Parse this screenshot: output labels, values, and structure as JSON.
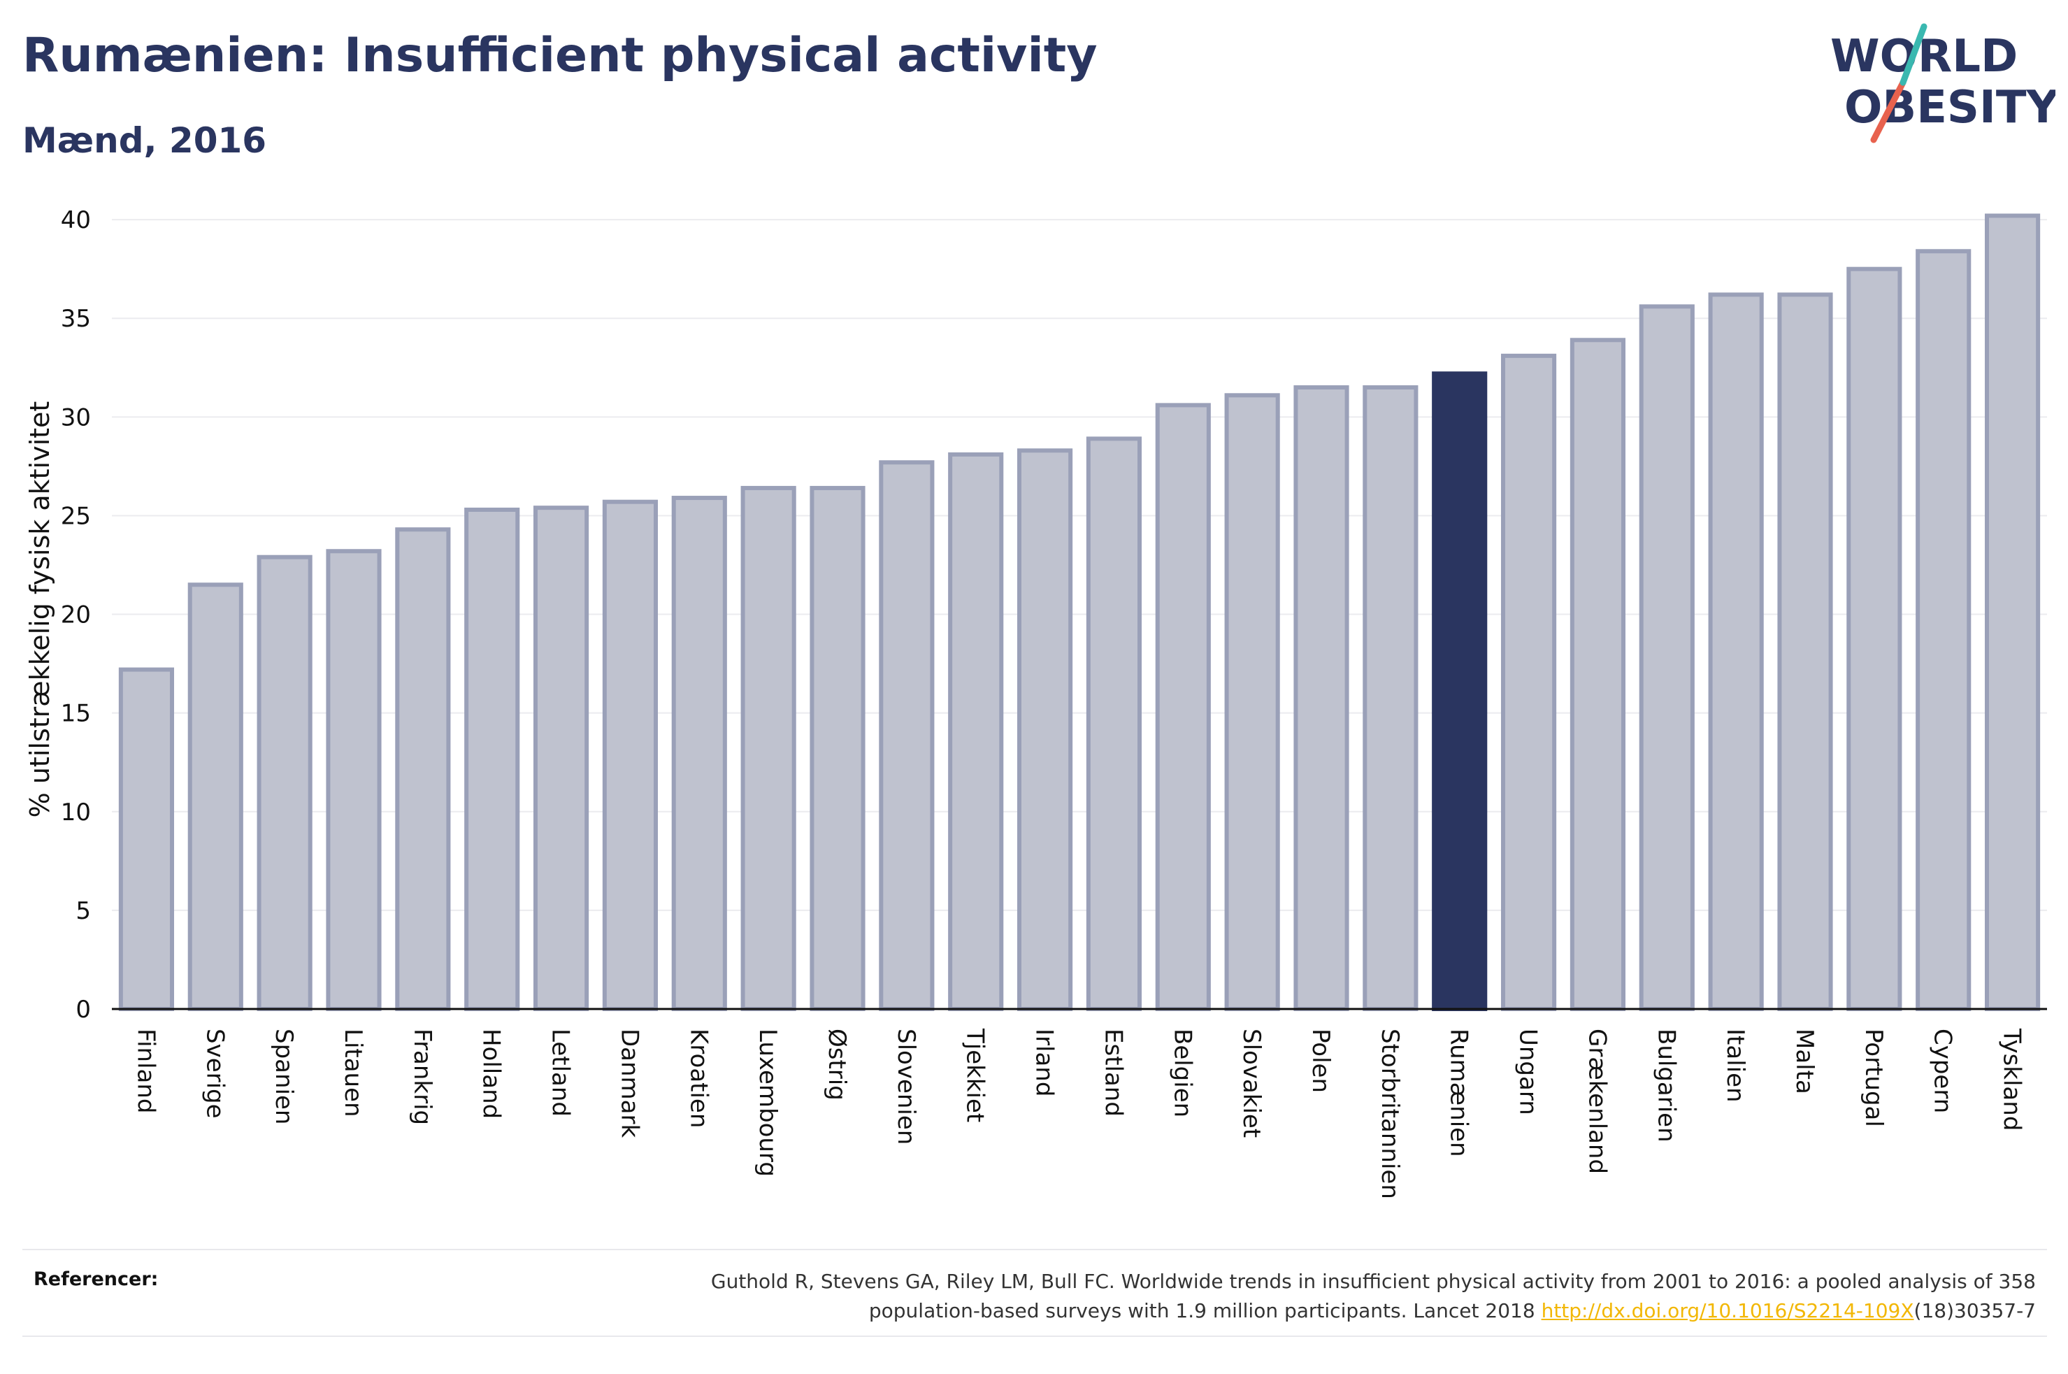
{
  "header": {
    "title": "Rumænien: Insufficient physical activity",
    "subtitle": "Mænd, 2016"
  },
  "logo": {
    "line1": "WORLD",
    "line2": "OBESITY",
    "colors": {
      "text": "#2a3560",
      "slash_teal": "#3ab8b0",
      "slash_red": "#e8624e"
    }
  },
  "colors": {
    "bar_default": "#bfc2cf",
    "bar_stroke": "#9aa0b8",
    "bar_highlight": "#2a3560",
    "grid": "#ebebef",
    "axis": "#111111"
  },
  "chart_data": {
    "type": "bar",
    "ylabel": "% utilstrækkelig fysisk aktivitet",
    "ylim": [
      0,
      40
    ],
    "yticks": [
      0,
      5,
      10,
      15,
      20,
      25,
      30,
      35,
      40
    ],
    "grid": true,
    "highlight": "Rumænien",
    "categories": [
      "Finland",
      "Sverige",
      "Spanien",
      "Litauen",
      "Frankrig",
      "Holland",
      "Letland",
      "Danmark",
      "Kroatien",
      "Luxembourg",
      "Østrig",
      "Slovenien",
      "Tjekkiet",
      "Irland",
      "Estland",
      "Belgien",
      "Slovakiet",
      "Polen",
      "Storbritannien",
      "Rumænien",
      "Ungarn",
      "Grækenland",
      "Bulgarien",
      "Italien",
      "Malta",
      "Portugal",
      "Cypern",
      "Tyskland"
    ],
    "values": [
      17.2,
      21.5,
      22.9,
      23.2,
      24.3,
      25.3,
      25.4,
      25.7,
      25.9,
      26.4,
      26.4,
      27.7,
      28.1,
      28.3,
      28.9,
      30.6,
      31.1,
      31.5,
      31.5,
      32.2,
      33.1,
      33.9,
      35.6,
      36.2,
      36.2,
      37.5,
      38.4,
      40.2
    ]
  },
  "references": {
    "label": "Referencer:",
    "line1": "Guthold R, Stevens GA, Riley LM, Bull FC. Worldwide trends in insufficient physical activity from 2001 to 2016: a pooled analysis of 358",
    "line2_pre": "population-based surveys with 1.9 million participants. Lancet 2018 ",
    "link": "http://dx.doi.org/10.1016/S2214-109X",
    "line2_post": "(18)30357-7"
  }
}
